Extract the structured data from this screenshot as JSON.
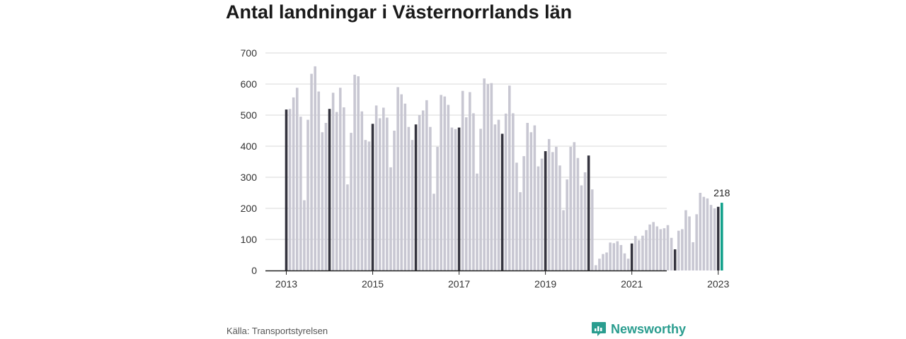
{
  "title": "Antal landningar i Västernorrlands län",
  "source": "Källa: Transportstyrelsen",
  "brand": {
    "name": "Newsworthy",
    "icon": "newsworthy-logo-icon"
  },
  "colors": {
    "bar": "#c8c7d2",
    "january_bar": "#35343f",
    "highlight_bar": "#12a18b",
    "grid": "#d8d8d8",
    "axis": "#222222"
  },
  "chart_data": {
    "type": "bar",
    "title": "Antal landningar i Västernorrlands län",
    "xlabel": "",
    "ylabel": "",
    "ylim": [
      0,
      700
    ],
    "yticks": [
      0,
      100,
      200,
      300,
      400,
      500,
      600,
      700
    ],
    "xtick_labels": [
      "2013",
      "2015",
      "2017",
      "2019",
      "2021",
      "2023"
    ],
    "start": "2013-01",
    "annotation": {
      "label": "218",
      "month": "2023-02"
    },
    "values": [
      518,
      520,
      557,
      588,
      495,
      226,
      485,
      633,
      657,
      576,
      445,
      475,
      520,
      572,
      510,
      588,
      525,
      277,
      443,
      630,
      625,
      512,
      420,
      415,
      472,
      531,
      490,
      524,
      492,
      332,
      450,
      590,
      567,
      537,
      462,
      420,
      470,
      500,
      515,
      548,
      462,
      247,
      398,
      565,
      560,
      533,
      460,
      455,
      460,
      578,
      493,
      574,
      506,
      312,
      456,
      618,
      600,
      603,
      470,
      485,
      440,
      505,
      595,
      506,
      347,
      252,
      368,
      475,
      445,
      467,
      335,
      360,
      384,
      423,
      381,
      398,
      338,
      194,
      293,
      398,
      413,
      362,
      274,
      316,
      370,
      261,
      17,
      38,
      53,
      58,
      90,
      88,
      94,
      82,
      55,
      38,
      87,
      111,
      97,
      112,
      130,
      148,
      156,
      142,
      133,
      136,
      146,
      105,
      68,
      128,
      133,
      194,
      174,
      91,
      181,
      250,
      237,
      232,
      211,
      200,
      205,
      218
    ]
  }
}
